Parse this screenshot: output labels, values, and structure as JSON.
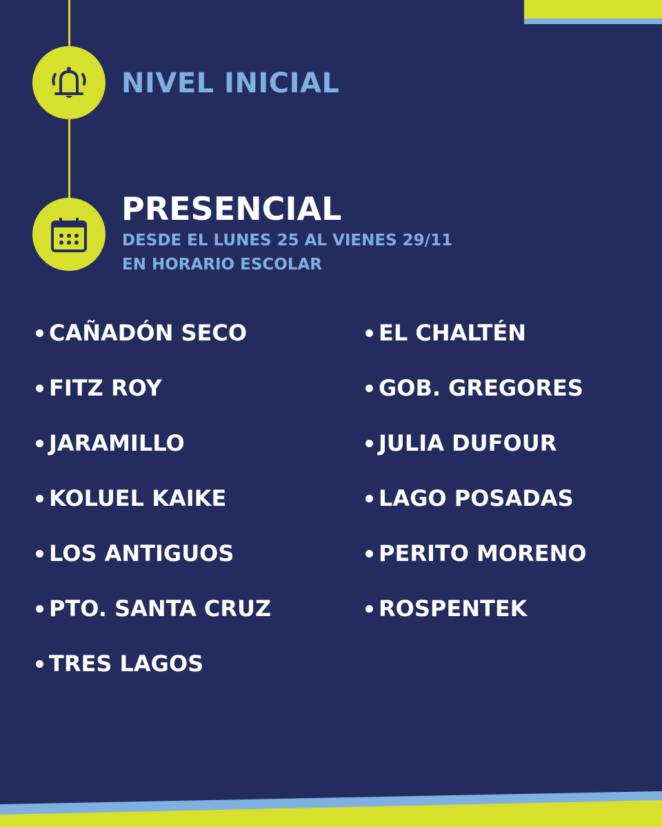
{
  "header": {
    "level": "NIVEL INICIAL",
    "mode": "PRESENCIAL",
    "dates": "DESDE EL LUNES 25 AL VIENES 29/11",
    "schedule": "EN HORARIO ESCOLAR"
  },
  "icons": [
    "bell-icon",
    "calendar-icon"
  ],
  "colors": {
    "background": "#232b5f",
    "accent": "#d6e02d",
    "light_blue": "#7fb0e0"
  },
  "localities": {
    "left": [
      "CAÑADÓN SECO",
      "FITZ ROY",
      "JARAMILLO",
      "KOLUEL KAIKE",
      "LOS ANTIGUOS",
      "PTO. SANTA CRUZ",
      "TRES LAGOS"
    ],
    "right": [
      "EL CHALTÉN",
      "GOB. GREGORES",
      "JULIA DUFOUR",
      "LAGO POSADAS",
      "PERITO MORENO",
      "ROSPENTEK"
    ]
  }
}
